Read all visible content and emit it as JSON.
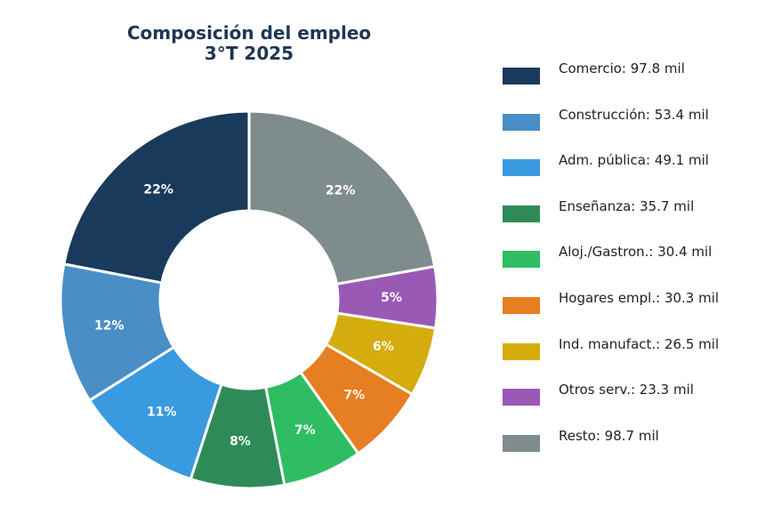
{
  "chart_data": {
    "type": "pie",
    "title": "Composición del empleo",
    "subtitle": "3°T 2025",
    "categories": [
      "Comercio",
      "Construcción",
      "Adm. pública",
      "Enseñanza",
      "Aloj./Gastron.",
      "Hogares empl.",
      "Ind. manufact.",
      "Otros serv.",
      "Resto"
    ],
    "values": [
      97.8,
      53.4,
      49.1,
      35.7,
      30.4,
      30.3,
      26.5,
      23.3,
      98.7
    ],
    "unit": "mil",
    "percent_labels": [
      "22%",
      "12%",
      "11%",
      "8%",
      "7%",
      "7%",
      "6%",
      "5%",
      "22%"
    ],
    "legend_labels": [
      "Comercio: 97.8 mil",
      "Construcción: 53.4 mil",
      "Adm. pública: 49.1 mil",
      "Enseñanza: 35.7 mil",
      "Aloj./Gastron.: 30.4 mil",
      "Hogares empl.: 30.3 mil",
      "Ind. manufact.: 26.5 mil",
      "Otros serv.: 23.3 mil",
      "Resto: 98.7 mil"
    ],
    "colors": [
      "#1a3a5c",
      "#4a8ec8",
      "#3a9ae0",
      "#2e8b57",
      "#2ebd63",
      "#e67e22",
      "#d4ac0d",
      "#9b59b6",
      "#7f8c8d"
    ],
    "donut": true,
    "legend_position": "right",
    "start_angle_deg": 0,
    "direction": "counterclockwise"
  }
}
